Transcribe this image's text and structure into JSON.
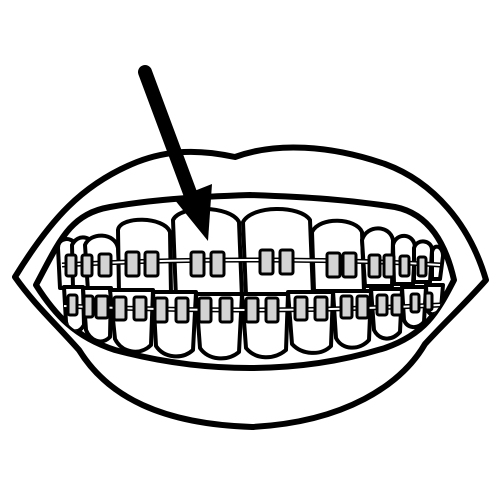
{
  "illustration": {
    "subject": "mouth-with-braces",
    "icon_name": "braces-icon",
    "pointer": "arrow-icon",
    "colors": {
      "line": "#000000",
      "fill": "#ffffff",
      "bracket": "#d3d3d3"
    }
  }
}
